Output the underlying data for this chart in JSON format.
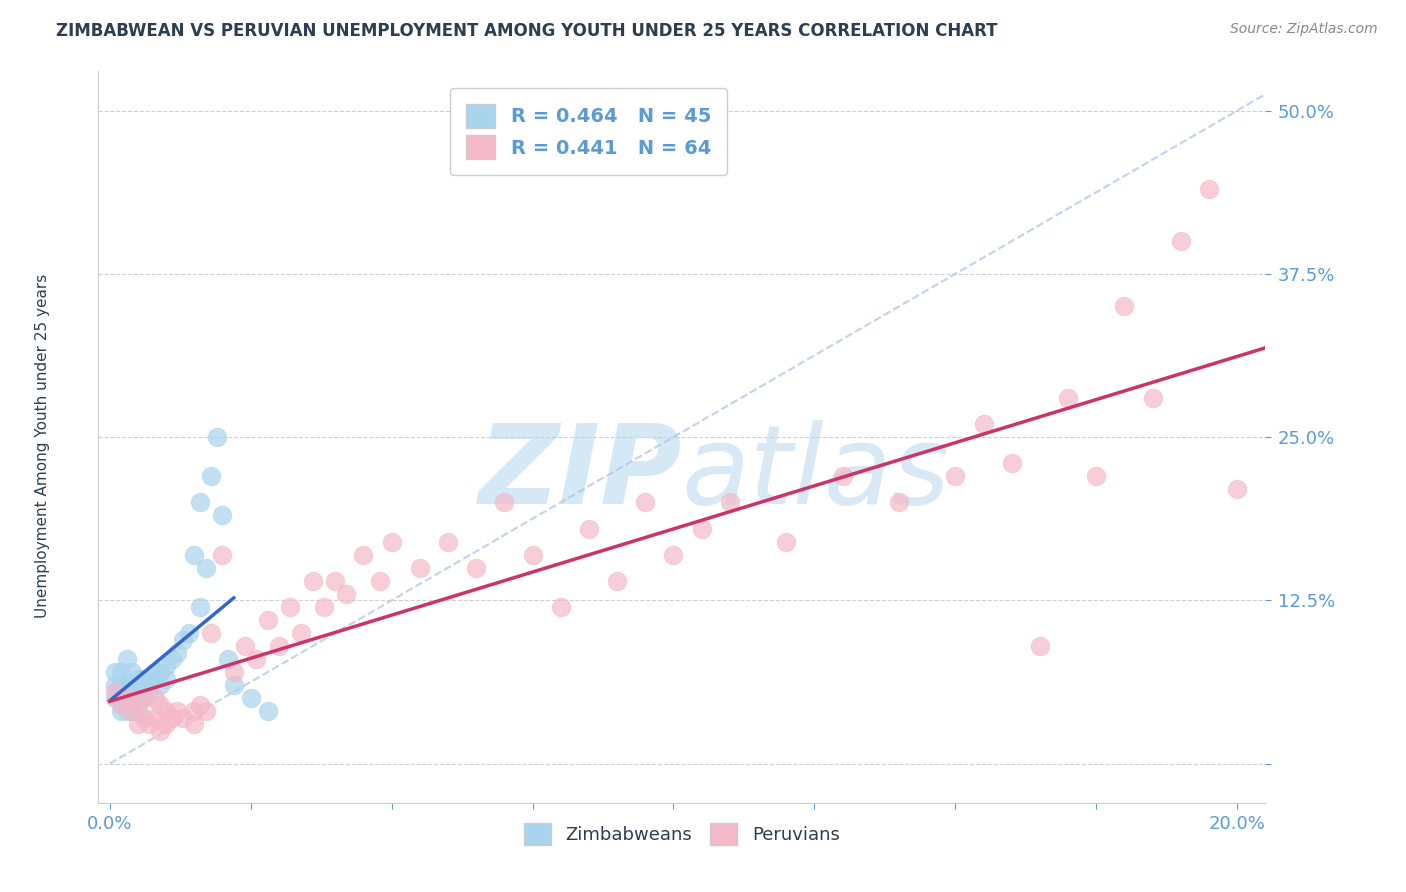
{
  "title": "ZIMBABWEAN VS PERUVIAN UNEMPLOYMENT AMONG YOUTH UNDER 25 YEARS CORRELATION CHART",
  "source": "Source: ZipAtlas.com",
  "ylabel": "Unemployment Among Youth under 25 years",
  "xlim": [
    -0.002,
    0.205
  ],
  "ylim": [
    -0.03,
    0.53
  ],
  "yticks": [
    0.0,
    0.125,
    0.25,
    0.375,
    0.5
  ],
  "xtick_vals": [
    0.0,
    0.2
  ],
  "zimbabwe_R": 0.464,
  "zimbabwe_N": 45,
  "peru_R": 0.441,
  "peru_N": 64,
  "zimbabwe_color": "#a8d4ed",
  "peru_color": "#f5b8c8",
  "zimbabwe_trend_color": "#3366cc",
  "peru_trend_color": "#cc3366",
  "diag_line_color": "#b0c8e8",
  "watermark_color": "#d5e8f5",
  "background_color": "#ffffff",
  "grid_color": "#d0d0d0",
  "title_color": "#2c3e50",
  "axis_label_color": "#2c3e50",
  "tick_color": "#5b9bd5",
  "legend_text_color": "#5b9bd5",
  "zimbabwe_x": [
    0.001,
    0.001,
    0.001,
    0.002,
    0.002,
    0.002,
    0.002,
    0.003,
    0.003,
    0.003,
    0.003,
    0.004,
    0.004,
    0.004,
    0.004,
    0.005,
    0.005,
    0.005,
    0.005,
    0.006,
    0.006,
    0.006,
    0.007,
    0.007,
    0.008,
    0.008,
    0.009,
    0.009,
    0.01,
    0.01,
    0.011,
    0.012,
    0.013,
    0.014,
    0.015,
    0.016,
    0.016,
    0.017,
    0.018,
    0.019,
    0.02,
    0.021,
    0.022,
    0.025,
    0.028
  ],
  "zimbabwe_y": [
    0.05,
    0.06,
    0.07,
    0.04,
    0.05,
    0.06,
    0.07,
    0.04,
    0.05,
    0.06,
    0.08,
    0.04,
    0.05,
    0.06,
    0.07,
    0.04,
    0.05,
    0.055,
    0.065,
    0.05,
    0.06,
    0.065,
    0.055,
    0.065,
    0.065,
    0.07,
    0.06,
    0.07,
    0.065,
    0.075,
    0.08,
    0.085,
    0.095,
    0.1,
    0.16,
    0.12,
    0.2,
    0.15,
    0.22,
    0.25,
    0.19,
    0.08,
    0.06,
    0.05,
    0.04
  ],
  "peru_x": [
    0.001,
    0.002,
    0.003,
    0.004,
    0.005,
    0.005,
    0.006,
    0.006,
    0.007,
    0.008,
    0.008,
    0.009,
    0.009,
    0.01,
    0.01,
    0.011,
    0.012,
    0.013,
    0.015,
    0.015,
    0.016,
    0.017,
    0.018,
    0.02,
    0.022,
    0.024,
    0.026,
    0.028,
    0.03,
    0.032,
    0.034,
    0.036,
    0.038,
    0.04,
    0.042,
    0.045,
    0.048,
    0.05,
    0.055,
    0.06,
    0.065,
    0.07,
    0.075,
    0.08,
    0.085,
    0.09,
    0.095,
    0.1,
    0.105,
    0.11,
    0.12,
    0.13,
    0.14,
    0.15,
    0.155,
    0.16,
    0.165,
    0.17,
    0.175,
    0.18,
    0.185,
    0.19,
    0.195,
    0.2
  ],
  "peru_y": [
    0.055,
    0.045,
    0.05,
    0.04,
    0.03,
    0.045,
    0.035,
    0.05,
    0.03,
    0.035,
    0.05,
    0.025,
    0.045,
    0.03,
    0.04,
    0.035,
    0.04,
    0.035,
    0.03,
    0.04,
    0.045,
    0.04,
    0.1,
    0.16,
    0.07,
    0.09,
    0.08,
    0.11,
    0.09,
    0.12,
    0.1,
    0.14,
    0.12,
    0.14,
    0.13,
    0.16,
    0.14,
    0.17,
    0.15,
    0.17,
    0.15,
    0.2,
    0.16,
    0.12,
    0.18,
    0.14,
    0.2,
    0.16,
    0.18,
    0.2,
    0.17,
    0.22,
    0.2,
    0.22,
    0.26,
    0.23,
    0.09,
    0.28,
    0.22,
    0.35,
    0.28,
    0.4,
    0.44,
    0.21
  ]
}
